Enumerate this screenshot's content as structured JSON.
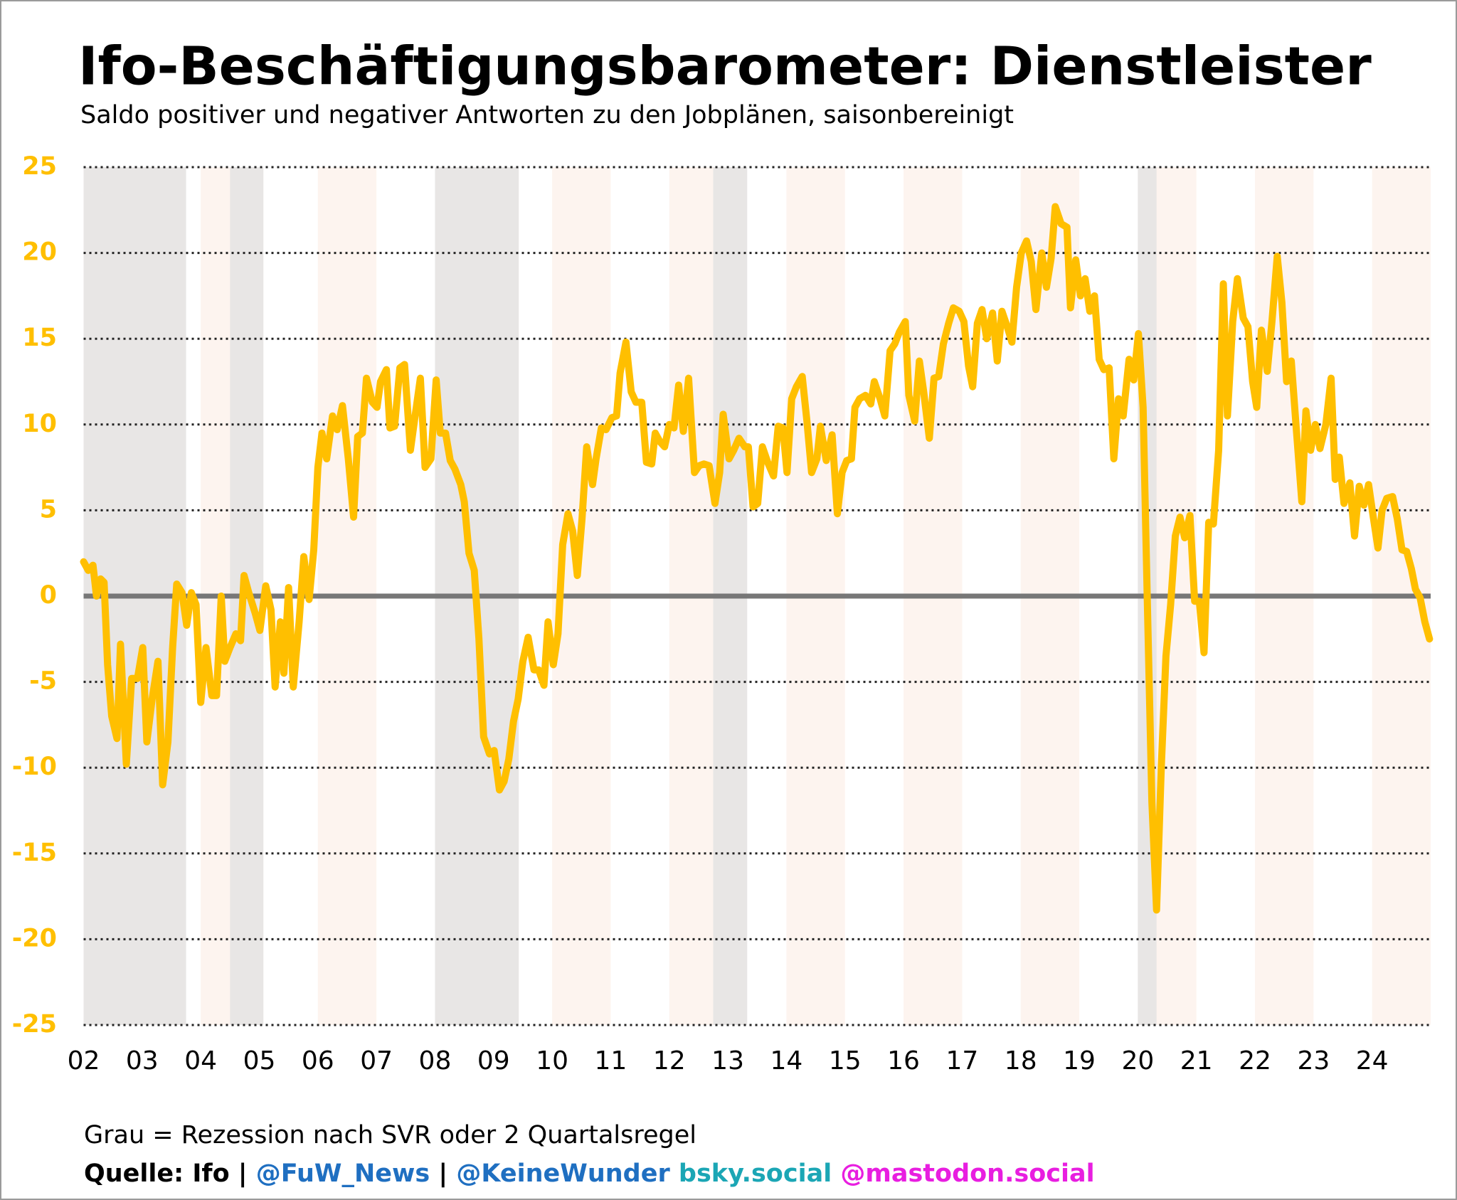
{
  "chart_data": {
    "type": "line",
    "title": "Ifo-Beschäftigungsbarometer: Dienstleister",
    "subtitle": "Saldo positiver und negativer Antworten zu den Jobplänen, saisonbereinigt",
    "note": "Grau = Rezession nach SVR oder 2 Quartalsregel",
    "source": [
      {
        "text": "Quelle: Ifo | ",
        "color": "#000000"
      },
      {
        "text": "@FuW_News",
        "color": "#1f6fc1"
      },
      {
        "text": " | ",
        "color": "#000000"
      },
      {
        "text": "@KeineWunder",
        "color": "#1f6fc1"
      },
      {
        "text": " bsky.social",
        "color": "#1ba6b5"
      },
      {
        "text": " @mastodon.social",
        "color": "#e81ee0"
      }
    ],
    "xlim": [
      2002,
      2025
    ],
    "ylim": [
      -25,
      25
    ],
    "yticks": [
      25,
      20,
      15,
      10,
      5,
      0,
      -5,
      -10,
      -15,
      -20,
      -25
    ],
    "xticks": [
      {
        "value": 2002,
        "label": "02"
      },
      {
        "value": 2003,
        "label": "03"
      },
      {
        "value": 2004,
        "label": "04"
      },
      {
        "value": 2005,
        "label": "05"
      },
      {
        "value": 2006,
        "label": "06"
      },
      {
        "value": 2007,
        "label": "07"
      },
      {
        "value": 2008,
        "label": "08"
      },
      {
        "value": 2009,
        "label": "09"
      },
      {
        "value": 2010,
        "label": "10"
      },
      {
        "value": 2011,
        "label": "11"
      },
      {
        "value": 2012,
        "label": "12"
      },
      {
        "value": 2013,
        "label": "13"
      },
      {
        "value": 2014,
        "label": "14"
      },
      {
        "value": 2015,
        "label": "15"
      },
      {
        "value": 2016,
        "label": "16"
      },
      {
        "value": 2017,
        "label": "17"
      },
      {
        "value": 2018,
        "label": "18"
      },
      {
        "value": 2019,
        "label": "19"
      },
      {
        "value": 2020,
        "label": "20"
      },
      {
        "value": 2021,
        "label": "21"
      },
      {
        "value": 2022,
        "label": "22"
      },
      {
        "value": 2023,
        "label": "23"
      },
      {
        "value": 2024,
        "label": "24"
      }
    ],
    "grid": true,
    "zero_line_color": "#777777",
    "recession_color": "#e8e6e5",
    "recessions": [
      [
        2002.0,
        2003.75
      ],
      [
        2004.5,
        2005.07
      ],
      [
        2008.0,
        2009.43
      ],
      [
        2012.75,
        2013.33
      ],
      [
        2020.0,
        2020.32
      ]
    ],
    "band_color": "#fdf4ef",
    "band_years": [
      2002,
      2004,
      2006,
      2008,
      2010,
      2012,
      2014,
      2016,
      2018,
      2020,
      2022,
      2024
    ],
    "x": [
      2002.0,
      2002.08,
      2002.16,
      2002.22,
      2002.29,
      2002.35,
      2002.41,
      2002.48,
      2002.57,
      2002.63,
      2002.73,
      2002.82,
      2002.92,
      2003.01,
      2003.08,
      2003.17,
      2003.27,
      2003.35,
      2003.44,
      2003.52,
      2003.59,
      2003.68,
      2003.76,
      2003.84,
      2003.92,
      2004.0,
      2004.09,
      2004.19,
      2004.27,
      2004.35,
      2004.41,
      2004.5,
      2004.6,
      2004.68,
      2004.74,
      2004.82,
      2004.93,
      2005.01,
      2005.11,
      2005.2,
      2005.27,
      2005.36,
      2005.42,
      2005.5,
      2005.58,
      2005.68,
      2005.76,
      2005.85,
      2005.93,
      2006.0,
      2006.07,
      2006.15,
      2006.25,
      2006.33,
      2006.42,
      2006.52,
      2006.61,
      2006.68,
      2006.76,
      2006.83,
      2006.93,
      2007.01,
      2007.07,
      2007.17,
      2007.23,
      2007.31,
      2007.4,
      2007.48,
      2007.58,
      2007.66,
      2007.75,
      2007.83,
      2007.93,
      2008.02,
      2008.09,
      2008.18,
      2008.26,
      2008.34,
      2008.44,
      2008.5,
      2008.58,
      2008.67,
      2008.75,
      2008.83,
      2008.93,
      2009.01,
      2009.1,
      2009.18,
      2009.26,
      2009.34,
      2009.42,
      2009.5,
      2009.59,
      2009.69,
      2009.77,
      2009.86,
      2009.93,
      2010.02,
      2010.1,
      2010.18,
      2010.27,
      2010.35,
      2010.43,
      2010.51,
      2010.59,
      2010.69,
      2010.75,
      2010.84,
      2010.92,
      2011.02,
      2011.1,
      2011.16,
      2011.26,
      2011.35,
      2011.43,
      2011.53,
      2011.61,
      2011.7,
      2011.76,
      2011.84,
      2011.92,
      2012.0,
      2012.08,
      2012.16,
      2012.24,
      2012.33,
      2012.43,
      2012.51,
      2012.59,
      2012.68,
      2012.78,
      2012.86,
      2012.92,
      2013.02,
      2013.1,
      2013.19,
      2013.29,
      2013.35,
      2013.43,
      2013.51,
      2013.59,
      2013.68,
      2013.78,
      2013.86,
      2013.94,
      2014.01,
      2014.09,
      2014.17,
      2014.27,
      2014.35,
      2014.43,
      2014.52,
      2014.58,
      2014.68,
      2014.78,
      2014.87,
      2014.95,
      2015.03,
      2015.11,
      2015.17,
      2015.25,
      2015.35,
      2015.44,
      2015.5,
      2015.6,
      2015.68,
      2015.77,
      2015.85,
      2015.93,
      2016.03,
      2016.09,
      2016.19,
      2016.27,
      2016.34,
      2016.44,
      2016.52,
      2016.6,
      2016.68,
      2016.77,
      2016.85,
      2016.95,
      2017.03,
      2017.11,
      2017.18,
      2017.26,
      2017.34,
      2017.42,
      2017.52,
      2017.6,
      2017.68,
      2017.77,
      2017.85,
      2017.93,
      2018.01,
      2018.1,
      2018.18,
      2018.26,
      2018.36,
      2018.44,
      2018.52,
      2018.59,
      2018.69,
      2018.79,
      2018.85,
      2018.94,
      2019.02,
      2019.1,
      2019.18,
      2019.26,
      2019.34,
      2019.42,
      2019.51,
      2019.59,
      2019.67,
      2019.75,
      2019.85,
      2019.93,
      2020.01,
      2020.09,
      2020.16,
      2020.24,
      2020.32,
      2020.4,
      2020.48,
      2020.56,
      2020.64,
      2020.72,
      2020.8,
      2020.89,
      2020.97,
      2021.05,
      2021.13,
      2021.21,
      2021.29,
      2021.38,
      2021.46,
      2021.53,
      2021.62,
      2021.7,
      2021.8,
      2021.88,
      2021.96,
      2022.03,
      2022.11,
      2022.21,
      2022.29,
      2022.38,
      2022.46,
      2022.54,
      2022.62,
      2022.7,
      2022.8,
      2022.87,
      2022.95,
      2023.03,
      2023.11,
      2023.21,
      2023.3,
      2023.37,
      2023.44,
      2023.52,
      2023.62,
      2023.7,
      2023.78,
      2023.86,
      2023.94,
      2024.02,
      2024.1,
      2024.17,
      2024.25,
      2024.35,
      2024.43,
      2024.51,
      2024.59,
      2024.67,
      2024.74,
      2024.82,
      2024.9,
      2024.98
    ],
    "series": [
      {
        "name": "Dienstleister",
        "color": "#ffbf00",
        "values": [
          2,
          1.5,
          1.8,
          0,
          1,
          0.8,
          -4,
          -7,
          -8.3,
          -2.8,
          -9.8,
          -4.8,
          -4.8,
          -3,
          -8.5,
          -6,
          -3.8,
          -11,
          -8.5,
          -3,
          0.7,
          0.2,
          -1.7,
          0.2,
          -0.5,
          -6.2,
          -3,
          -5.8,
          -5.8,
          0,
          -3.8,
          -3,
          -2.2,
          -2.6,
          1.2,
          0.2,
          -1,
          -2,
          0.6,
          -0.8,
          -5.3,
          -1.5,
          -4.5,
          0.5,
          -5.3,
          -1.5,
          2.3,
          -0.2,
          2.7,
          7.5,
          9.5,
          8,
          10.5,
          9.7,
          11.1,
          8,
          4.6,
          9.3,
          9.5,
          12.7,
          11.3,
          11,
          12.5,
          13.2,
          9.8,
          9.9,
          13.3,
          13.5,
          8.5,
          10.5,
          12.7,
          7.5,
          8,
          12.6,
          9.5,
          9.5,
          7.9,
          7.4,
          6.5,
          5.5,
          2.5,
          1.5,
          -2.5,
          -8.2,
          -9.2,
          -9,
          -11.3,
          -10.8,
          -9.5,
          -7.3,
          -6,
          -3.8,
          -2.4,
          -4.3,
          -4.3,
          -5.2,
          -1.5,
          -4,
          -2.2,
          3,
          4.8,
          3.8,
          1.2,
          4.5,
          8.7,
          6.5,
          8,
          9.8,
          9.7,
          10.4,
          10.5,
          13,
          14.8,
          11.9,
          11.3,
          11.3,
          7.8,
          7.7,
          9.5,
          9,
          8.7,
          10,
          9.8,
          12.3,
          9.6,
          12.7,
          7.2,
          7.6,
          7.7,
          7.6,
          5.4,
          7.2,
          10.6,
          8,
          8.5,
          9.2,
          8.7,
          8.7,
          5.2,
          5.4,
          8.7,
          7.8,
          7,
          9.9,
          9.8,
          7.2,
          11.5,
          12.2,
          12.8,
          10.2,
          7.2,
          8,
          9.9,
          7.9,
          9.4,
          4.8,
          7.2,
          7.9,
          8,
          11,
          11.5,
          11.7,
          11.2,
          12.5,
          11.5,
          10.5,
          14.3,
          14.7,
          15.4,
          16,
          11.7,
          10.2,
          13.7,
          12,
          9.2,
          12.7,
          12.8,
          14.7,
          15.9,
          16.8,
          16.6,
          16,
          13.4,
          12.2,
          15.9,
          16.7,
          15,
          16.5,
          13.7,
          16.6,
          15.7,
          14.8,
          18,
          20,
          20.7,
          19.5,
          16.7,
          20,
          18,
          19.7,
          22.7,
          21.7,
          21.5,
          16.8,
          19.6,
          17.5,
          18.5,
          16.6,
          17.5,
          13.8,
          13.2,
          13.3,
          8,
          11.5,
          10.5,
          13.8,
          12.6,
          15.3,
          11,
          0,
          -12,
          -18.3,
          -10,
          -3.5,
          -0.5,
          3.5,
          4.6,
          3.4,
          4.7,
          -0.3,
          -0.3,
          -3.3,
          4.3,
          4.2,
          8.5,
          18.2,
          10.5,
          16,
          18.5,
          16.2,
          15.7,
          12.5,
          11,
          15.5,
          13.1,
          16,
          19.8,
          17.1,
          12.5,
          13.7,
          10,
          5.5,
          10.8,
          8.5,
          10,
          8.6,
          10,
          12.7,
          6.8,
          8.1,
          5.4,
          6.6,
          3.5,
          6.4,
          5.3,
          6.5,
          4.6,
          2.8,
          5,
          5.7,
          5.8,
          4.5,
          2.7,
          2.6,
          1.6,
          0.4,
          -0.1,
          -1.5,
          -2.5
        ]
      }
    ]
  }
}
